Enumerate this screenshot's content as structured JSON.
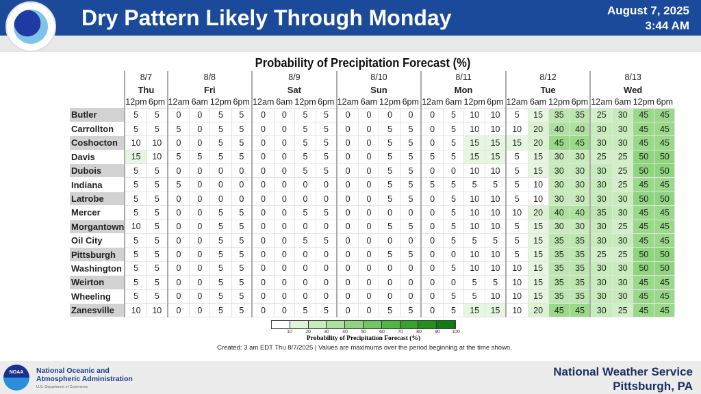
{
  "header": {
    "title": "Dry Pattern Likely Through Monday",
    "date": "August 7, 2025",
    "time": "3:44 AM",
    "logo_text": "NATIONAL WEATHER SERVICE"
  },
  "chart_title": "Probability of Precipitation Forecast (%)",
  "days": [
    {
      "date": "8/7",
      "day": "Thu",
      "times": [
        "12pm",
        "6pm"
      ]
    },
    {
      "date": "8/8",
      "day": "Fri",
      "times": [
        "12am",
        "6am",
        "12pm",
        "6pm"
      ]
    },
    {
      "date": "8/9",
      "day": "Sat",
      "times": [
        "12am",
        "6am",
        "12pm",
        "6pm"
      ]
    },
    {
      "date": "8/10",
      "day": "Sun",
      "times": [
        "12am",
        "6am",
        "12pm",
        "6pm"
      ]
    },
    {
      "date": "8/11",
      "day": "Mon",
      "times": [
        "12am",
        "6am",
        "12pm",
        "6pm"
      ]
    },
    {
      "date": "8/12",
      "day": "Tue",
      "times": [
        "12am",
        "6am",
        "12pm",
        "6pm"
      ]
    },
    {
      "date": "8/13",
      "day": "Wed",
      "times": [
        "12am",
        "6am",
        "12pm",
        "6pm"
      ]
    }
  ],
  "rows": [
    {
      "name": "Butler",
      "values": [
        5,
        5,
        0,
        0,
        5,
        5,
        0,
        0,
        5,
        5,
        0,
        0,
        0,
        0,
        0,
        5,
        10,
        10,
        5,
        15,
        35,
        35,
        25,
        30,
        45,
        45
      ]
    },
    {
      "name": "Carrollton",
      "values": [
        5,
        5,
        5,
        0,
        5,
        5,
        0,
        0,
        5,
        5,
        0,
        0,
        5,
        5,
        0,
        5,
        10,
        10,
        10,
        20,
        40,
        40,
        30,
        30,
        45,
        45
      ]
    },
    {
      "name": "Coshocton",
      "values": [
        10,
        10,
        0,
        0,
        5,
        5,
        0,
        0,
        5,
        5,
        0,
        0,
        5,
        5,
        0,
        5,
        15,
        15,
        15,
        20,
        45,
        45,
        30,
        30,
        45,
        45
      ]
    },
    {
      "name": "Davis",
      "values": [
        15,
        10,
        5,
        5,
        5,
        5,
        0,
        0,
        5,
        5,
        0,
        0,
        5,
        5,
        5,
        5,
        15,
        15,
        5,
        15,
        30,
        30,
        25,
        25,
        50,
        50
      ]
    },
    {
      "name": "Dubois",
      "values": [
        5,
        5,
        0,
        0,
        0,
        0,
        0,
        0,
        5,
        5,
        0,
        0,
        5,
        5,
        0,
        0,
        10,
        10,
        5,
        15,
        30,
        30,
        30,
        25,
        50,
        50
      ]
    },
    {
      "name": "Indiana",
      "values": [
        5,
        5,
        5,
        0,
        0,
        0,
        0,
        0,
        0,
        0,
        0,
        0,
        5,
        5,
        5,
        5,
        5,
        5,
        5,
        10,
        30,
        30,
        30,
        25,
        45,
        45
      ]
    },
    {
      "name": "Latrobe",
      "values": [
        5,
        5,
        0,
        0,
        0,
        0,
        0,
        0,
        0,
        0,
        0,
        0,
        5,
        5,
        0,
        5,
        10,
        10,
        5,
        10,
        30,
        30,
        30,
        30,
        50,
        50
      ]
    },
    {
      "name": "Mercer",
      "values": [
        5,
        5,
        0,
        0,
        5,
        5,
        0,
        0,
        5,
        5,
        0,
        0,
        0,
        0,
        0,
        5,
        10,
        10,
        10,
        20,
        40,
        40,
        35,
        30,
        45,
        45
      ]
    },
    {
      "name": "Morgantown",
      "values": [
        10,
        5,
        0,
        0,
        5,
        5,
        0,
        0,
        0,
        0,
        0,
        0,
        5,
        5,
        0,
        5,
        10,
        10,
        5,
        15,
        30,
        30,
        30,
        25,
        45,
        45
      ]
    },
    {
      "name": "Oil City",
      "values": [
        5,
        5,
        0,
        0,
        5,
        5,
        0,
        0,
        5,
        5,
        0,
        0,
        0,
        0,
        0,
        5,
        5,
        5,
        5,
        15,
        35,
        35,
        30,
        30,
        45,
        45
      ]
    },
    {
      "name": "Pittsburgh",
      "values": [
        5,
        5,
        0,
        0,
        5,
        5,
        0,
        0,
        0,
        0,
        0,
        0,
        5,
        5,
        0,
        0,
        10,
        10,
        5,
        15,
        35,
        35,
        25,
        25,
        50,
        50
      ]
    },
    {
      "name": "Washington",
      "values": [
        5,
        5,
        0,
        0,
        5,
        5,
        0,
        0,
        0,
        0,
        0,
        0,
        0,
        0,
        0,
        5,
        10,
        10,
        10,
        15,
        35,
        35,
        30,
        30,
        50,
        50
      ]
    },
    {
      "name": "Weirton",
      "values": [
        5,
        5,
        0,
        0,
        5,
        5,
        0,
        0,
        0,
        0,
        0,
        0,
        0,
        0,
        0,
        0,
        5,
        5,
        10,
        15,
        35,
        35,
        30,
        30,
        45,
        45
      ]
    },
    {
      "name": "Wheeling",
      "values": [
        5,
        5,
        0,
        0,
        5,
        5,
        0,
        0,
        0,
        0,
        0,
        0,
        0,
        0,
        0,
        5,
        5,
        10,
        10,
        15,
        35,
        35,
        30,
        30,
        45,
        45
      ]
    },
    {
      "name": "Zanesville",
      "values": [
        10,
        10,
        0,
        0,
        5,
        5,
        0,
        0,
        5,
        5,
        0,
        0,
        5,
        5,
        0,
        5,
        15,
        15,
        10,
        20,
        45,
        45,
        30,
        25,
        45,
        45
      ]
    }
  ],
  "legend": {
    "ticks": [
      "10",
      "20",
      "30",
      "40",
      "50",
      "60",
      "70",
      "80",
      "90",
      "100"
    ],
    "title": "Probability of Precipitation Forecast (%)",
    "colors": [
      "#ffffff",
      "#dff3d6",
      "#c8ebbb",
      "#aee0a0",
      "#8fd47f",
      "#6fc75f",
      "#4fb842",
      "#33a52b",
      "#1f921c",
      "#0f7d10"
    ]
  },
  "note": "Created: 3 am EDT Thu 8/7/2025  |  Values are maximums over the period beginning at the time shown.",
  "footer": {
    "org_line1": "National Oceanic and",
    "org_line2": "Atmospheric Administration",
    "org_sub": "U.S. Department of Commerce",
    "noaa_logo": "NOAA",
    "office": "National Weather Service",
    "location": "Pittsburgh, PA"
  }
}
